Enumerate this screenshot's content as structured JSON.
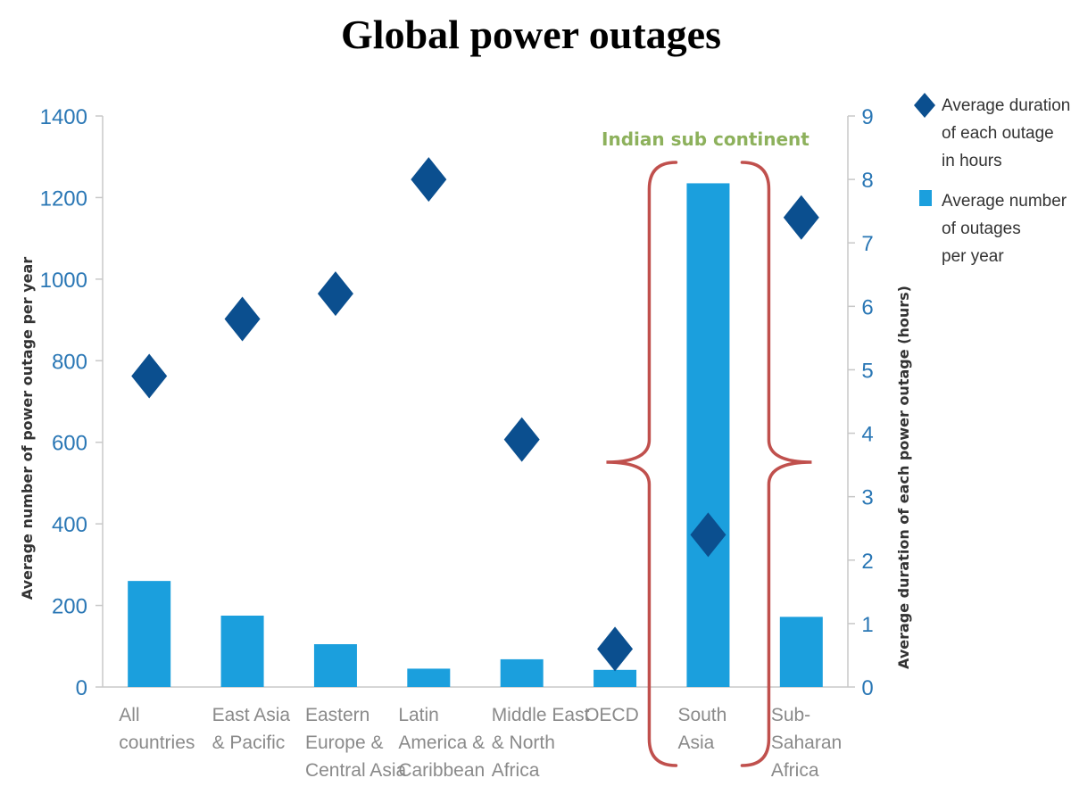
{
  "title": "Global power outages",
  "colors": {
    "bar": "#1b9fdd",
    "marker": "#0b4f8f",
    "axis_text": "#2a77b5",
    "category_text": "#8a8a8a",
    "axis_line": "#c8c8c8",
    "annotation_text": "#8db15c",
    "brace": "#c0504d"
  },
  "chart_data": {
    "type": "bar",
    "categories": [
      [
        "All",
        "countries"
      ],
      [
        "East Asia",
        "& Pacific"
      ],
      [
        "Eastern",
        "Europe &",
        "Central Asia"
      ],
      [
        "Latin",
        "America &",
        "Caribbean"
      ],
      [
        "Middle East",
        "& North",
        "Africa"
      ],
      [
        "OECD"
      ],
      [
        "South",
        "Asia"
      ],
      [
        "Sub-",
        "Saharan",
        "Africa"
      ]
    ],
    "series": [
      {
        "name": "Average number of outages per year",
        "legend_lines": [
          "Average number",
          "of outages",
          "per year"
        ],
        "type": "bar",
        "axis": "left",
        "values": [
          260,
          175,
          105,
          45,
          68,
          42,
          1235,
          172
        ]
      },
      {
        "name": "Average duration of each outage in hours",
        "legend_lines": [
          "Average duration",
          "of each outage",
          "in hours"
        ],
        "type": "scatter",
        "marker": "diamond",
        "axis": "right",
        "values": [
          4.9,
          5.8,
          6.2,
          8.0,
          3.9,
          0.6,
          2.4,
          7.4
        ]
      }
    ],
    "y_left": {
      "label": "Average number of power outage per year",
      "range": [
        0,
        1400
      ],
      "ticks": [
        "0",
        "200",
        "400",
        "600",
        "800",
        "1000",
        "1200",
        "1400"
      ]
    },
    "y_right": {
      "label": "Average duration of each power outage (hours)",
      "range": [
        0,
        9
      ],
      "ticks": [
        "0",
        "1",
        "2",
        "3",
        "4",
        "5",
        "6",
        "7",
        "8",
        "9"
      ]
    },
    "annotation": {
      "text": "Indian sub continent",
      "target_category": 6
    },
    "legend_position": "top-right",
    "grid": false
  }
}
